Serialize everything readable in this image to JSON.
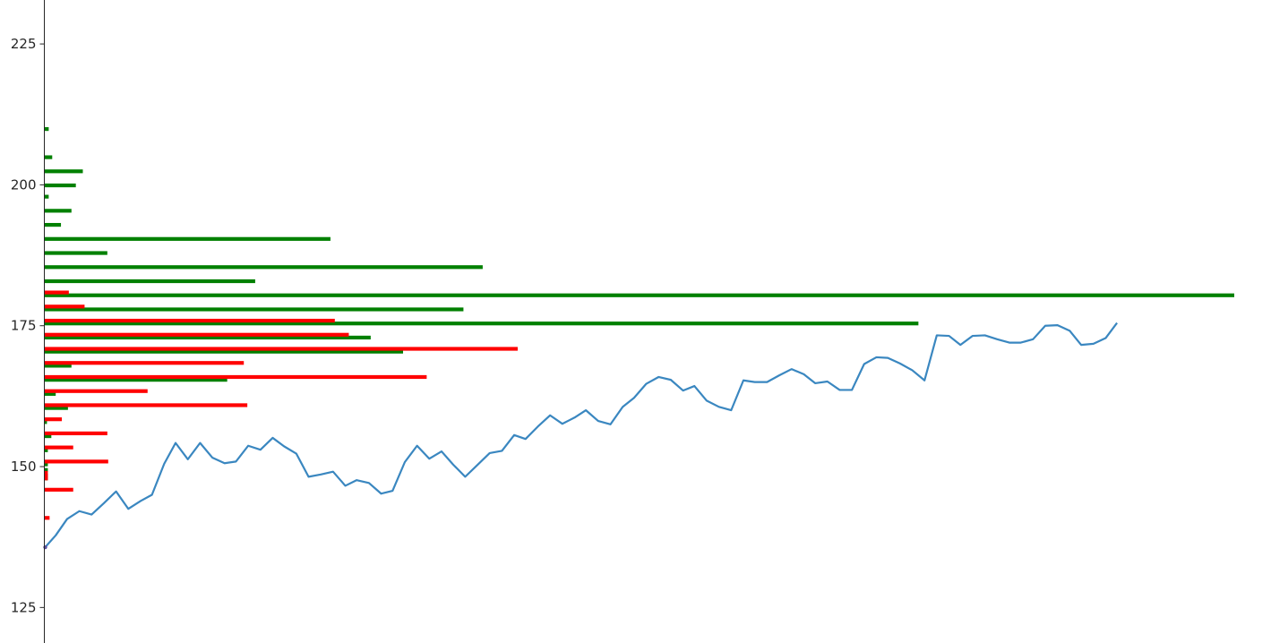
{
  "chart_data": {
    "type": "bar",
    "orientation": "horizontal",
    "ylim": [
      118.7,
      232.8
    ],
    "xlim": [
      0,
      13.6
    ],
    "yticks": [
      "125",
      "150",
      "175",
      "200",
      "225"
    ],
    "grid": false,
    "legend": "none",
    "colors": {
      "up": "#008000",
      "down": "#ff0000",
      "line": "#3a87c0",
      "axis": "#262626"
    },
    "series": [
      {
        "kind": "bars-up",
        "y": [
          209.9,
          204.9,
          202.4,
          199.9,
          197.9,
          195.4,
          192.9,
          190.4,
          187.9,
          185.4,
          182.9,
          180.4,
          177.9,
          175.4,
          172.9,
          170.4,
          167.9,
          165.4,
          162.9,
          160.4,
          157.9,
          155.4,
          152.9,
          150.4,
          149.4,
          148.4,
          147.9
        ],
        "values": [
          0.05,
          0.09,
          0.44,
          0.36,
          0.05,
          0.31,
          0.19,
          3.27,
          0.72,
          5.01,
          2.41,
          13.6,
          4.79,
          9.99,
          3.73,
          4.1,
          0.31,
          2.09,
          0.13,
          0.27,
          0.03,
          0.08,
          0.04,
          0.04,
          0.04,
          0.04,
          0.04
        ]
      },
      {
        "kind": "bars-down",
        "y": [
          180.9,
          178.4,
          175.9,
          173.4,
          170.9,
          168.4,
          165.9,
          163.4,
          160.9,
          158.4,
          155.9,
          153.4,
          150.9,
          148.9,
          148.4,
          147.9,
          145.9,
          140.9
        ],
        "values": [
          0.28,
          0.46,
          3.32,
          3.48,
          5.41,
          2.28,
          4.37,
          1.18,
          2.32,
          0.2,
          0.72,
          0.33,
          0.73,
          0.04,
          0.04,
          0.04,
          0.33,
          0.06
        ]
      },
      {
        "kind": "line",
        "x": [
          0.01,
          0.13,
          0.26,
          0.4,
          0.54,
          0.68,
          0.82,
          0.96,
          1.1,
          1.23,
          1.37,
          1.5,
          1.64,
          1.78,
          1.92,
          2.06,
          2.19,
          2.33,
          2.47,
          2.61,
          2.74,
          2.88,
          3.02,
          3.16,
          3.3,
          3.44,
          3.57,
          3.71,
          3.85,
          3.98,
          4.12,
          4.26,
          4.4,
          4.54,
          4.67,
          4.81,
          4.95,
          5.09,
          5.23,
          5.37,
          5.5,
          5.64,
          5.78,
          5.92,
          6.06,
          6.19,
          6.33,
          6.47,
          6.61,
          6.74,
          6.88,
          7.02,
          7.16,
          7.3,
          7.43,
          7.57,
          7.71,
          7.85,
          7.99,
          8.12,
          8.26,
          8.4,
          8.54,
          8.68,
          8.81,
          8.95,
          9.09,
          9.23,
          9.37,
          9.51,
          9.64,
          9.78,
          9.92,
          10.06,
          10.2,
          10.34,
          10.47,
          10.61,
          10.75,
          10.89,
          11.03,
          11.16,
          11.3,
          11.44,
          11.58,
          11.72,
          11.85,
          11.99,
          12.13,
          12.26
        ],
        "values": [
          135.7,
          137.8,
          140.7,
          142.1,
          141.5,
          143.5,
          145.6,
          142.5,
          143.9,
          145.0,
          150.5,
          154.2,
          151.3,
          154.2,
          151.6,
          150.6,
          150.9,
          153.7,
          153.0,
          155.1,
          153.6,
          152.3,
          148.2,
          148.6,
          149.1,
          146.6,
          147.6,
          147.1,
          145.2,
          145.7,
          150.8,
          153.7,
          151.4,
          152.7,
          150.4,
          148.2,
          150.3,
          152.4,
          152.8,
          155.6,
          154.9,
          157.1,
          159.1,
          157.6,
          158.7,
          160.0,
          158.1,
          157.5,
          160.6,
          162.2,
          164.7,
          165.9,
          165.4,
          163.5,
          164.3,
          161.7,
          160.6,
          160.0,
          165.3,
          165.0,
          165.0,
          166.2,
          167.3,
          166.4,
          164.8,
          165.1,
          163.6,
          163.6,
          168.2,
          169.4,
          169.3,
          168.3,
          167.1,
          165.3,
          173.3,
          173.2,
          171.6,
          173.2,
          173.3,
          172.6,
          172.0,
          172.0,
          172.6,
          175.0,
          175.1,
          174.1,
          171.6,
          171.8,
          172.8,
          175.5
        ]
      }
    ]
  }
}
